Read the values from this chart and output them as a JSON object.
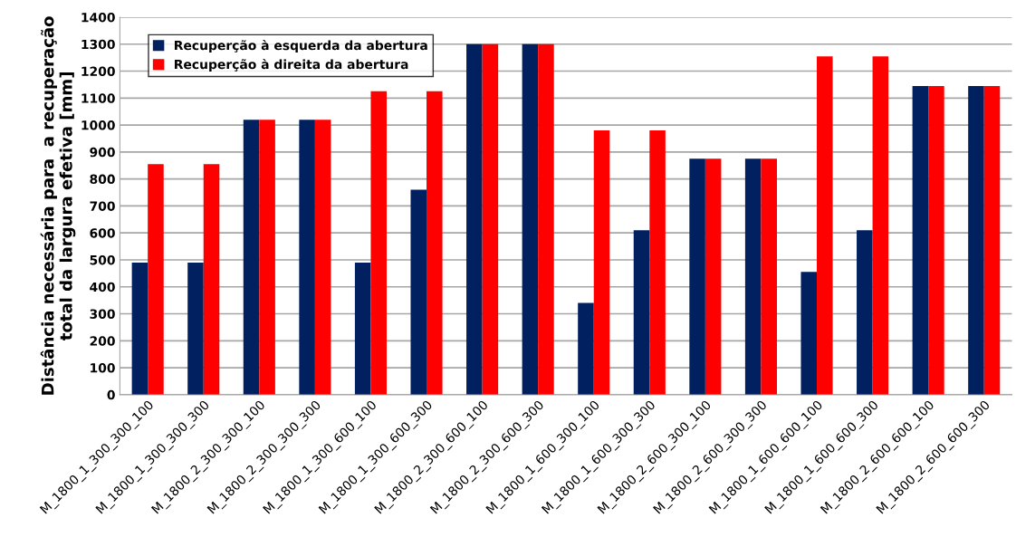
{
  "chart_data": {
    "type": "bar",
    "ylabel": "Distância necessária para  a recuperação\ntotal da largura efetiva [mm]",
    "categories": [
      "M_1800_1_300_300_100",
      "M_1800_1_300_300_300",
      "M_1800_2_300_300_100",
      "M_1800_2_300_300_300",
      "M_1800_1_300_600_100",
      "M_1800_1_300_600_300",
      "M_1800_2_300_600_100",
      "M_1800_2_300_600_300",
      "M_1800_1_600_300_100",
      "M_1800_1_600_300_300",
      "M_1800_2_600_300_100",
      "M_1800_2_600_300_300",
      "M_1800_1_600_600_100",
      "M_1800_1_600_600_300",
      "M_1800_2_600_600_100",
      "M_1800_2_600_600_300"
    ],
    "series": [
      {
        "name": "Recuperção à esquerda da abertura",
        "color": "#002060",
        "values": [
          490,
          490,
          1020,
          1020,
          490,
          760,
          1300,
          1300,
          340,
          610,
          875,
          875,
          455,
          610,
          1145,
          1145
        ]
      },
      {
        "name": "Recuperção à direita da abertura",
        "color": "#ff0000",
        "values": [
          855,
          855,
          1020,
          1020,
          1125,
          1125,
          1300,
          1300,
          980,
          980,
          875,
          875,
          1255,
          1255,
          1145,
          1145
        ]
      }
    ],
    "ylim": [
      0,
      1400
    ],
    "yticks": [
      0,
      100,
      200,
      300,
      400,
      500,
      600,
      700,
      800,
      900,
      1000,
      1100,
      1200,
      1300,
      1400
    ],
    "grid": "y",
    "legend": "top left"
  }
}
